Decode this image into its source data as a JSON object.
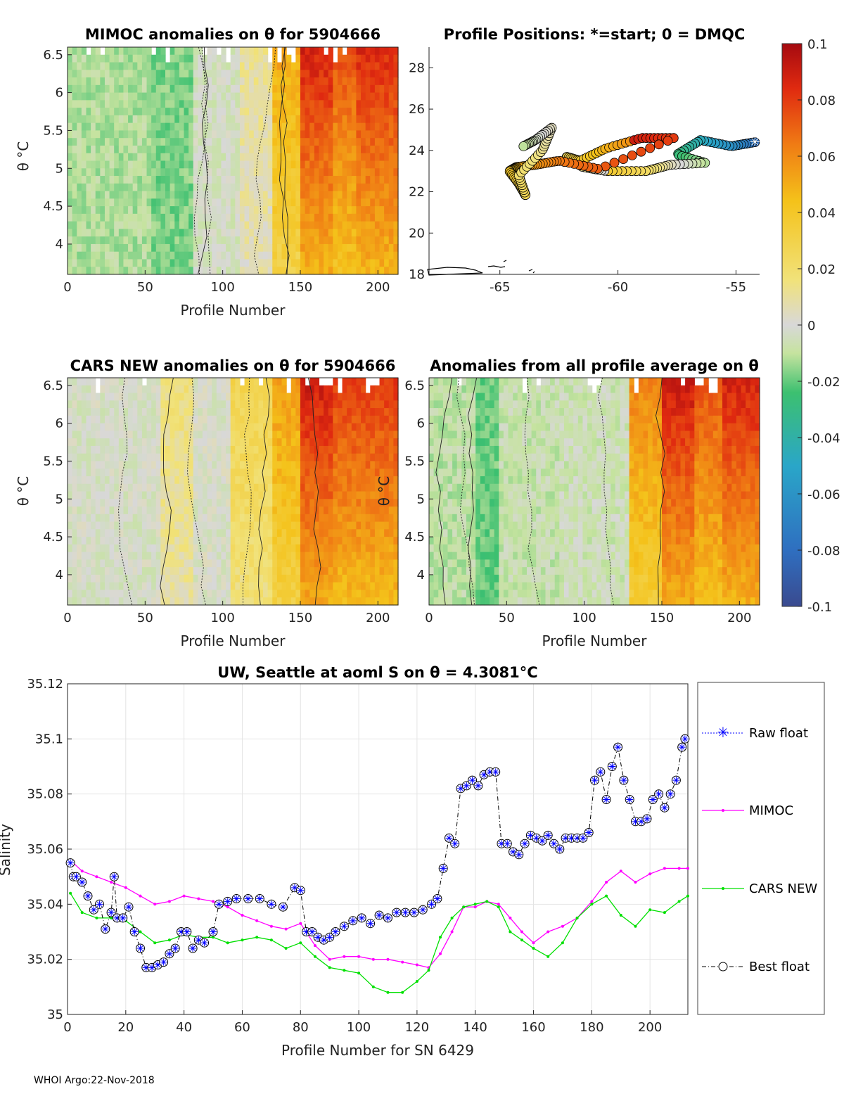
{
  "footer": "WHOI Argo:22-Nov-2018",
  "colorbar": {
    "ticks": [
      "0.1",
      "0.08",
      "0.06",
      "0.04",
      "0.02",
      "0",
      "-0.02",
      "-0.04",
      "-0.06",
      "-0.08",
      "-0.1"
    ],
    "range": [
      -0.1,
      0.1
    ]
  },
  "colors": {
    "mimoc": "#ff00ff",
    "cars": "#00e000",
    "raw": "#0000ff",
    "best": "#000000",
    "grid": "#e4e4e4"
  },
  "chart_data": [
    {
      "id": "mimoc",
      "type": "heatmap",
      "title": "MIMOC anomalies on θ  for 5904666",
      "xlabel": "Profile Number",
      "ylabel": "θ °C",
      "xlim": [
        0,
        213
      ],
      "ylim": [
        3.6,
        6.6
      ],
      "xticks": [
        "0",
        "50",
        "100",
        "150",
        "200"
      ],
      "yticks": [
        "6.5",
        "6",
        "5.5",
        "5",
        "4.5",
        "4"
      ],
      "bands": [
        [
          0,
          55,
          -0.012
        ],
        [
          55,
          80,
          -0.018
        ],
        [
          80,
          110,
          -0.003
        ],
        [
          110,
          132,
          0.008
        ],
        [
          132,
          150,
          0.042
        ],
        [
          150,
          170,
          0.07
        ],
        [
          170,
          185,
          0.06
        ],
        [
          185,
          213,
          0.068
        ]
      ]
    },
    {
      "id": "positions",
      "type": "scatter",
      "title": "Profile Positions: *=start; 0 = DMQC",
      "xlim": [
        -68,
        -54
      ],
      "ylim": [
        18,
        29
      ],
      "xticks": [
        "-65",
        "-60",
        "-55"
      ],
      "yticks": [
        "28",
        "26",
        "24",
        "22",
        "20",
        "18"
      ]
    },
    {
      "id": "cars",
      "type": "heatmap",
      "title": "CARS NEW anomalies on θ for 5904666",
      "xlabel": "Profile Number",
      "ylabel": "θ °C",
      "xlim": [
        0,
        213
      ],
      "ylim": [
        3.6,
        6.6
      ],
      "xticks": [
        "0",
        "50",
        "100",
        "150",
        "200"
      ],
      "yticks": [
        "6.5",
        "6",
        "5.5",
        "5",
        "4.5",
        "4"
      ],
      "bands": [
        [
          0,
          60,
          -0.002
        ],
        [
          60,
          80,
          0.012
        ],
        [
          80,
          105,
          -0.001
        ],
        [
          105,
          132,
          0.022
        ],
        [
          132,
          150,
          0.045
        ],
        [
          150,
          170,
          0.072
        ],
        [
          170,
          213,
          0.065
        ]
      ]
    },
    {
      "id": "allavg",
      "type": "heatmap",
      "title": "Anomalies from all profile average on θ",
      "xlabel": "Profile Number",
      "ylabel": "θ °C",
      "xlim": [
        0,
        213
      ],
      "ylim": [
        3.6,
        6.6
      ],
      "xticks": [
        "0",
        "50",
        "100",
        "150",
        "200"
      ],
      "yticks": [
        "6.5",
        "6",
        "5.5",
        "5",
        "4.5",
        "4"
      ],
      "bands": [
        [
          0,
          30,
          -0.01
        ],
        [
          30,
          45,
          -0.02
        ],
        [
          45,
          85,
          -0.008
        ],
        [
          85,
          130,
          -0.006
        ],
        [
          130,
          150,
          0.05
        ],
        [
          150,
          170,
          0.072
        ],
        [
          170,
          190,
          0.06
        ],
        [
          190,
          213,
          0.07
        ]
      ]
    },
    {
      "id": "salinity",
      "type": "line",
      "title": "UW, Seattle at aoml S on θ = 4.3081°C",
      "xlabel": "Profile Number for SN 6429",
      "ylabel": "Salinity",
      "xlim": [
        0,
        213
      ],
      "ylim": [
        35,
        35.12
      ],
      "xticks": [
        "0",
        "20",
        "40",
        "60",
        "80",
        "100",
        "120",
        "140",
        "160",
        "180",
        "200"
      ],
      "yticks": [
        "35.12",
        "35.1",
        "35.08",
        "35.06",
        "35.04",
        "35.02",
        "35"
      ],
      "legend": [
        "Raw float",
        "MIMOC",
        "CARS NEW",
        "Best float"
      ],
      "series": [
        {
          "name": "Best float",
          "x": [
            1,
            2,
            3,
            5,
            7,
            9,
            11,
            13,
            15,
            16,
            17,
            19,
            21,
            23,
            25,
            27,
            29,
            31,
            33,
            35,
            37,
            39,
            41,
            43,
            45,
            47,
            50,
            52,
            55,
            58,
            62,
            66,
            70,
            74,
            78,
            80,
            82,
            84,
            86,
            88,
            90,
            92,
            95,
            98,
            101,
            104,
            107,
            110,
            113,
            116,
            119,
            122,
            125,
            127,
            129,
            131,
            133,
            135,
            137,
            139,
            141,
            143,
            145,
            147,
            149,
            151,
            153,
            155,
            157,
            159,
            161,
            163,
            165,
            167,
            169,
            171,
            173,
            175,
            177,
            179,
            181,
            183,
            185,
            187,
            189,
            191,
            193,
            195,
            197,
            199,
            201,
            203,
            205,
            207,
            209,
            211,
            212
          ],
          "y": [
            35.055,
            35.05,
            35.05,
            35.048,
            35.043,
            35.038,
            35.04,
            35.031,
            35.037,
            35.05,
            35.035,
            35.035,
            35.039,
            35.03,
            35.024,
            35.017,
            35.017,
            35.018,
            35.019,
            35.022,
            35.024,
            35.03,
            35.03,
            35.024,
            35.027,
            35.026,
            35.03,
            35.04,
            35.041,
            35.042,
            35.042,
            35.042,
            35.04,
            35.039,
            35.046,
            35.045,
            35.03,
            35.03,
            35.028,
            35.027,
            35.028,
            35.03,
            35.032,
            35.034,
            35.035,
            35.033,
            35.036,
            35.035,
            35.037,
            35.037,
            35.037,
            35.038,
            35.04,
            35.042,
            35.053,
            35.064,
            35.062,
            35.082,
            35.083,
            35.085,
            35.083,
            35.087,
            35.088,
            35.088,
            35.062,
            35.062,
            35.059,
            35.058,
            35.062,
            35.065,
            35.064,
            35.063,
            35.065,
            35.062,
            35.06,
            35.064,
            35.064,
            35.064,
            35.064,
            35.066,
            35.085,
            35.088,
            35.078,
            35.09,
            35.097,
            35.085,
            35.078,
            35.07,
            35.07,
            35.071,
            35.078,
            35.08,
            35.075,
            35.08,
            35.085,
            35.097,
            35.1
          ]
        },
        {
          "name": "Raw float",
          "x": [
            1,
            2,
            3,
            5,
            7,
            9,
            11,
            13,
            15,
            16,
            17,
            19,
            21,
            23,
            25,
            27,
            29,
            31,
            33,
            35,
            37,
            39,
            41,
            43,
            45,
            47,
            50,
            52,
            55,
            58,
            62,
            66,
            70,
            74,
            78,
            80,
            82,
            84,
            86,
            88,
            90,
            92,
            95,
            98,
            101,
            104,
            107,
            110,
            113,
            116,
            119,
            122,
            125,
            127,
            129,
            131,
            133,
            135,
            137,
            139,
            141,
            143,
            145,
            147,
            149,
            151,
            153,
            155,
            157,
            159,
            161,
            163,
            165,
            167,
            169,
            171,
            173,
            175,
            177,
            179,
            181,
            183,
            185,
            187,
            189,
            191,
            193,
            195,
            197,
            199,
            201,
            203,
            205,
            207,
            209,
            211,
            212
          ],
          "y": [
            35.055,
            35.05,
            35.05,
            35.048,
            35.043,
            35.038,
            35.04,
            35.031,
            35.037,
            35.05,
            35.035,
            35.035,
            35.039,
            35.03,
            35.024,
            35.017,
            35.017,
            35.018,
            35.019,
            35.022,
            35.024,
            35.03,
            35.03,
            35.024,
            35.027,
            35.026,
            35.03,
            35.04,
            35.041,
            35.042,
            35.042,
            35.042,
            35.04,
            35.039,
            35.046,
            35.045,
            35.03,
            35.03,
            35.028,
            35.027,
            35.028,
            35.03,
            35.032,
            35.034,
            35.035,
            35.033,
            35.036,
            35.035,
            35.037,
            35.037,
            35.037,
            35.038,
            35.04,
            35.042,
            35.053,
            35.064,
            35.062,
            35.082,
            35.083,
            35.085,
            35.083,
            35.087,
            35.088,
            35.088,
            35.062,
            35.062,
            35.059,
            35.058,
            35.062,
            35.065,
            35.064,
            35.063,
            35.065,
            35.062,
            35.06,
            35.064,
            35.064,
            35.064,
            35.064,
            35.066,
            35.085,
            35.088,
            35.078,
            35.09,
            35.097,
            35.085,
            35.078,
            35.07,
            35.07,
            35.071,
            35.078,
            35.08,
            35.075,
            35.08,
            35.085,
            35.097,
            35.1
          ]
        },
        {
          "name": "MIMOC",
          "x": [
            1,
            5,
            10,
            15,
            20,
            25,
            30,
            35,
            40,
            45,
            50,
            55,
            60,
            65,
            70,
            75,
            80,
            85,
            90,
            95,
            100,
            105,
            110,
            115,
            120,
            124,
            128,
            132,
            136,
            140,
            144,
            148,
            152,
            156,
            160,
            165,
            170,
            175,
            180,
            185,
            190,
            195,
            200,
            205,
            210,
            213
          ],
          "y": [
            35.056,
            35.052,
            35.05,
            35.048,
            35.046,
            35.043,
            35.04,
            35.041,
            35.043,
            35.042,
            35.041,
            35.039,
            35.036,
            35.034,
            35.032,
            35.031,
            35.033,
            35.025,
            35.02,
            35.021,
            35.021,
            35.02,
            35.02,
            35.019,
            35.018,
            35.017,
            35.022,
            35.03,
            35.039,
            35.039,
            35.041,
            35.04,
            35.035,
            35.03,
            35.026,
            35.03,
            35.032,
            35.035,
            35.041,
            35.048,
            35.052,
            35.048,
            35.051,
            35.053,
            35.053,
            35.053
          ]
        },
        {
          "name": "CARS NEW",
          "x": [
            1,
            5,
            10,
            15,
            20,
            25,
            30,
            35,
            40,
            45,
            50,
            55,
            60,
            65,
            70,
            75,
            80,
            85,
            90,
            95,
            100,
            105,
            110,
            115,
            120,
            124,
            128,
            132,
            136,
            140,
            144,
            148,
            152,
            156,
            160,
            165,
            170,
            175,
            180,
            185,
            190,
            195,
            200,
            205,
            210,
            213
          ],
          "y": [
            35.044,
            35.037,
            35.035,
            35.035,
            35.034,
            35.03,
            35.026,
            35.027,
            35.029,
            35.028,
            35.028,
            35.026,
            35.027,
            35.028,
            35.027,
            35.024,
            35.026,
            35.021,
            35.017,
            35.016,
            35.015,
            35.01,
            35.008,
            35.008,
            35.012,
            35.016,
            35.028,
            35.035,
            35.039,
            35.04,
            35.041,
            35.039,
            35.03,
            35.027,
            35.024,
            35.021,
            35.026,
            35.035,
            35.04,
            35.043,
            35.036,
            35.032,
            35.038,
            35.037,
            35.041,
            35.043
          ]
        }
      ]
    }
  ]
}
